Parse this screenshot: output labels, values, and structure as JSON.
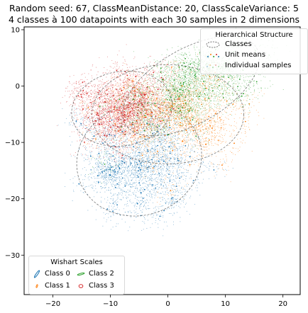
{
  "title_line1": "Random seed: 67, ClassMeanDistance: 20, ClassScaleVariance: 5",
  "title_line2": "4 classes à 100 datapoints with each 30 samples in 2 dimensions",
  "legend_hier": {
    "title": "Hierarchical Structure",
    "items": [
      {
        "label": "Classes",
        "symbol": "dashed-ellipse"
      },
      {
        "label": "Unit means",
        "symbol": "dots"
      },
      {
        "label": "Individual samples",
        "symbol": "small-dots"
      }
    ]
  },
  "legend_wishart": {
    "title": "Wishart Scales",
    "items": [
      {
        "label": "Class 0",
        "color": "#1f77b4"
      },
      {
        "label": "Class 2",
        "color": "#2ca02c"
      },
      {
        "label": "Class 1",
        "color": "#ff7f0e"
      },
      {
        "label": "Class 3",
        "color": "#d62728"
      }
    ]
  },
  "chart_data": {
    "type": "scatter",
    "title": "Random seed: 67, ClassMeanDistance: 20, ClassScaleVariance: 5\n4 classes à 100 datapoints with each 30 samples in 2 dimensions",
    "xlabel": "",
    "ylabel": "",
    "xlim": [
      -25,
      23
    ],
    "ylim": [
      -37,
      10.5
    ],
    "xticks": [
      -20,
      -10,
      0,
      10,
      20
    ],
    "yticks": [
      10,
      0,
      -10,
      -20,
      -30
    ],
    "grid": false,
    "legend_placement": [
      "top-right",
      "bottom-left"
    ],
    "classes": [
      {
        "name": "Class 0",
        "color": "#1f77b4",
        "center": [
          -5,
          -13
        ],
        "spread": [
          5,
          4.5
        ],
        "rotation_deg": 20
      },
      {
        "name": "Class 1",
        "color": "#ff7f0e",
        "center": [
          0,
          -5
        ],
        "spread": [
          6,
          4
        ],
        "rotation_deg": 0
      },
      {
        "name": "Class 2",
        "color": "#2ca02c",
        "center": [
          4,
          0
        ],
        "spread": [
          6,
          3
        ],
        "rotation_deg": 30
      },
      {
        "name": "Class 3",
        "color": "#d62728",
        "center": [
          -8,
          -4
        ],
        "spread": [
          4,
          3
        ],
        "rotation_deg": 10
      }
    ]
  }
}
